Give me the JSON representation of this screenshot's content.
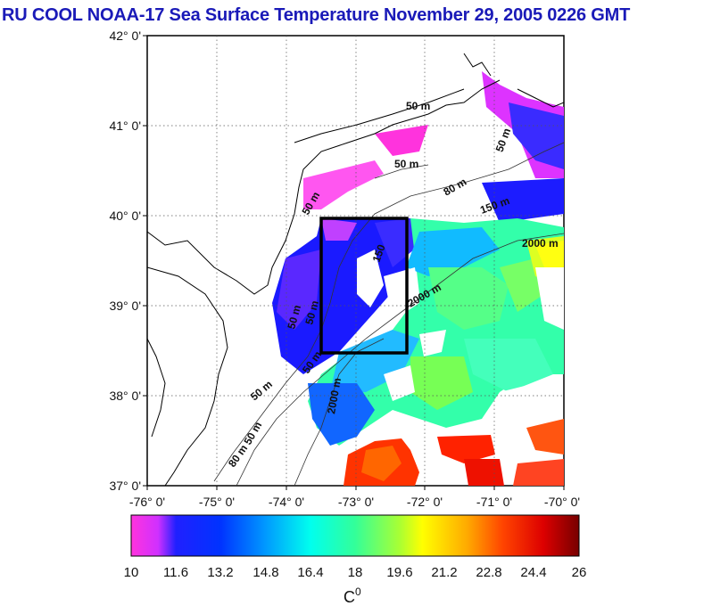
{
  "title": "RU COOL  NOAA-17 Sea Surface Temperature November 29, 2005 0226 GMT",
  "colors": {
    "title": "#1a1ab8",
    "land_stroke": "#000000",
    "box": "#000000",
    "grid": "#555555"
  },
  "map": {
    "lat_ticks": [
      "42° 0'",
      "41° 0'",
      "40° 0'",
      "39° 0'",
      "38° 0'",
      "37° 0'"
    ],
    "lon_ticks": [
      "-76° 0'",
      "-75° 0'",
      "-74° 0'",
      "-73° 0'",
      "-72° 0'",
      "-71° 0'",
      "-70° 0'"
    ],
    "lat_range": [
      37,
      42
    ],
    "lon_range": [
      -76,
      -70
    ],
    "study_box": {
      "lon_min": -73.45,
      "lon_max": -72.25,
      "lat_min": 38.5,
      "lat_max": 40.0
    },
    "contour_labels": [
      "50 m",
      "50 m",
      "50 m",
      "80 m",
      "150 m",
      "50 m",
      "2000 m",
      "2000 m",
      "50 m",
      "50 m",
      "150",
      "50 m",
      "2000 m",
      "50 m",
      "50 m",
      "80 m"
    ]
  },
  "colorbar": {
    "label": "C",
    "label_superscript": "0",
    "ticks": [
      "10",
      "11.6",
      "13.2",
      "14.8",
      "16.4",
      "18",
      "19.6",
      "21.2",
      "22.8",
      "24.4",
      "26"
    ],
    "min": 10,
    "max": 26,
    "stops": [
      "#ff33dd",
      "#c030ff",
      "#0000ff",
      "#0055ff",
      "#00bbff",
      "#00ffee",
      "#33ff99",
      "#aaff33",
      "#ffff00",
      "#ffaa00",
      "#ff4400",
      "#dd0000",
      "#770000"
    ]
  }
}
